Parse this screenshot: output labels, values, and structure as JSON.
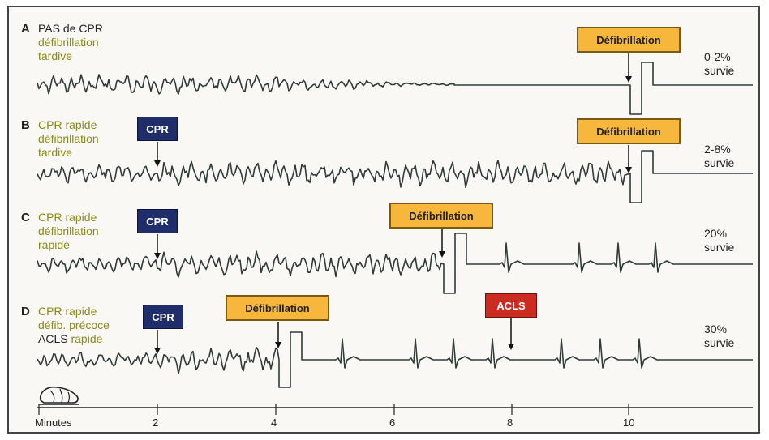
{
  "rows": [
    {
      "letter": "A",
      "lines": [
        {
          "text": "PAS de CPR",
          "tone": "dark"
        },
        {
          "text": "défibrillation",
          "tone": "green"
        },
        {
          "text": "tardive",
          "tone": "green"
        }
      ],
      "survival": [
        "0-2%",
        "survie"
      ]
    },
    {
      "letter": "B",
      "lines": [
        {
          "text": "CPR rapide",
          "tone": "green"
        },
        {
          "text": "défibrillation",
          "tone": "green"
        },
        {
          "text": "tardive",
          "tone": "green"
        }
      ],
      "survival": [
        "2-8%",
        "survie"
      ]
    },
    {
      "letter": "C",
      "lines": [
        {
          "text": "CPR rapide",
          "tone": "green"
        },
        {
          "text": "défibrillation",
          "tone": "green"
        },
        {
          "text": "rapide",
          "tone": "green"
        }
      ],
      "survival": [
        "20%",
        "survie"
      ]
    },
    {
      "letter": "D",
      "lines": [
        {
          "text": "CPR rapide",
          "tone": "green"
        },
        {
          "text": "défib. précoce",
          "tone": "green"
        },
        {
          "text": "ACLS rapide",
          "tone": "mixed"
        }
      ],
      "survival": [
        "30%",
        "survie"
      ]
    }
  ],
  "boxes": {
    "defibrillation": "Défibrillation",
    "cpr": "CPR",
    "acls": "ACLS"
  },
  "axis": {
    "label": "Minutes",
    "ticks": [
      "2",
      "4",
      "6",
      "8",
      "10"
    ]
  },
  "colors": {
    "trace": "#2e3b37",
    "defib_box": "#f6b73c",
    "cpr_box": "#1f2d6b",
    "acls_box": "#cc2b22",
    "label_green": "#8a8a1a"
  }
}
